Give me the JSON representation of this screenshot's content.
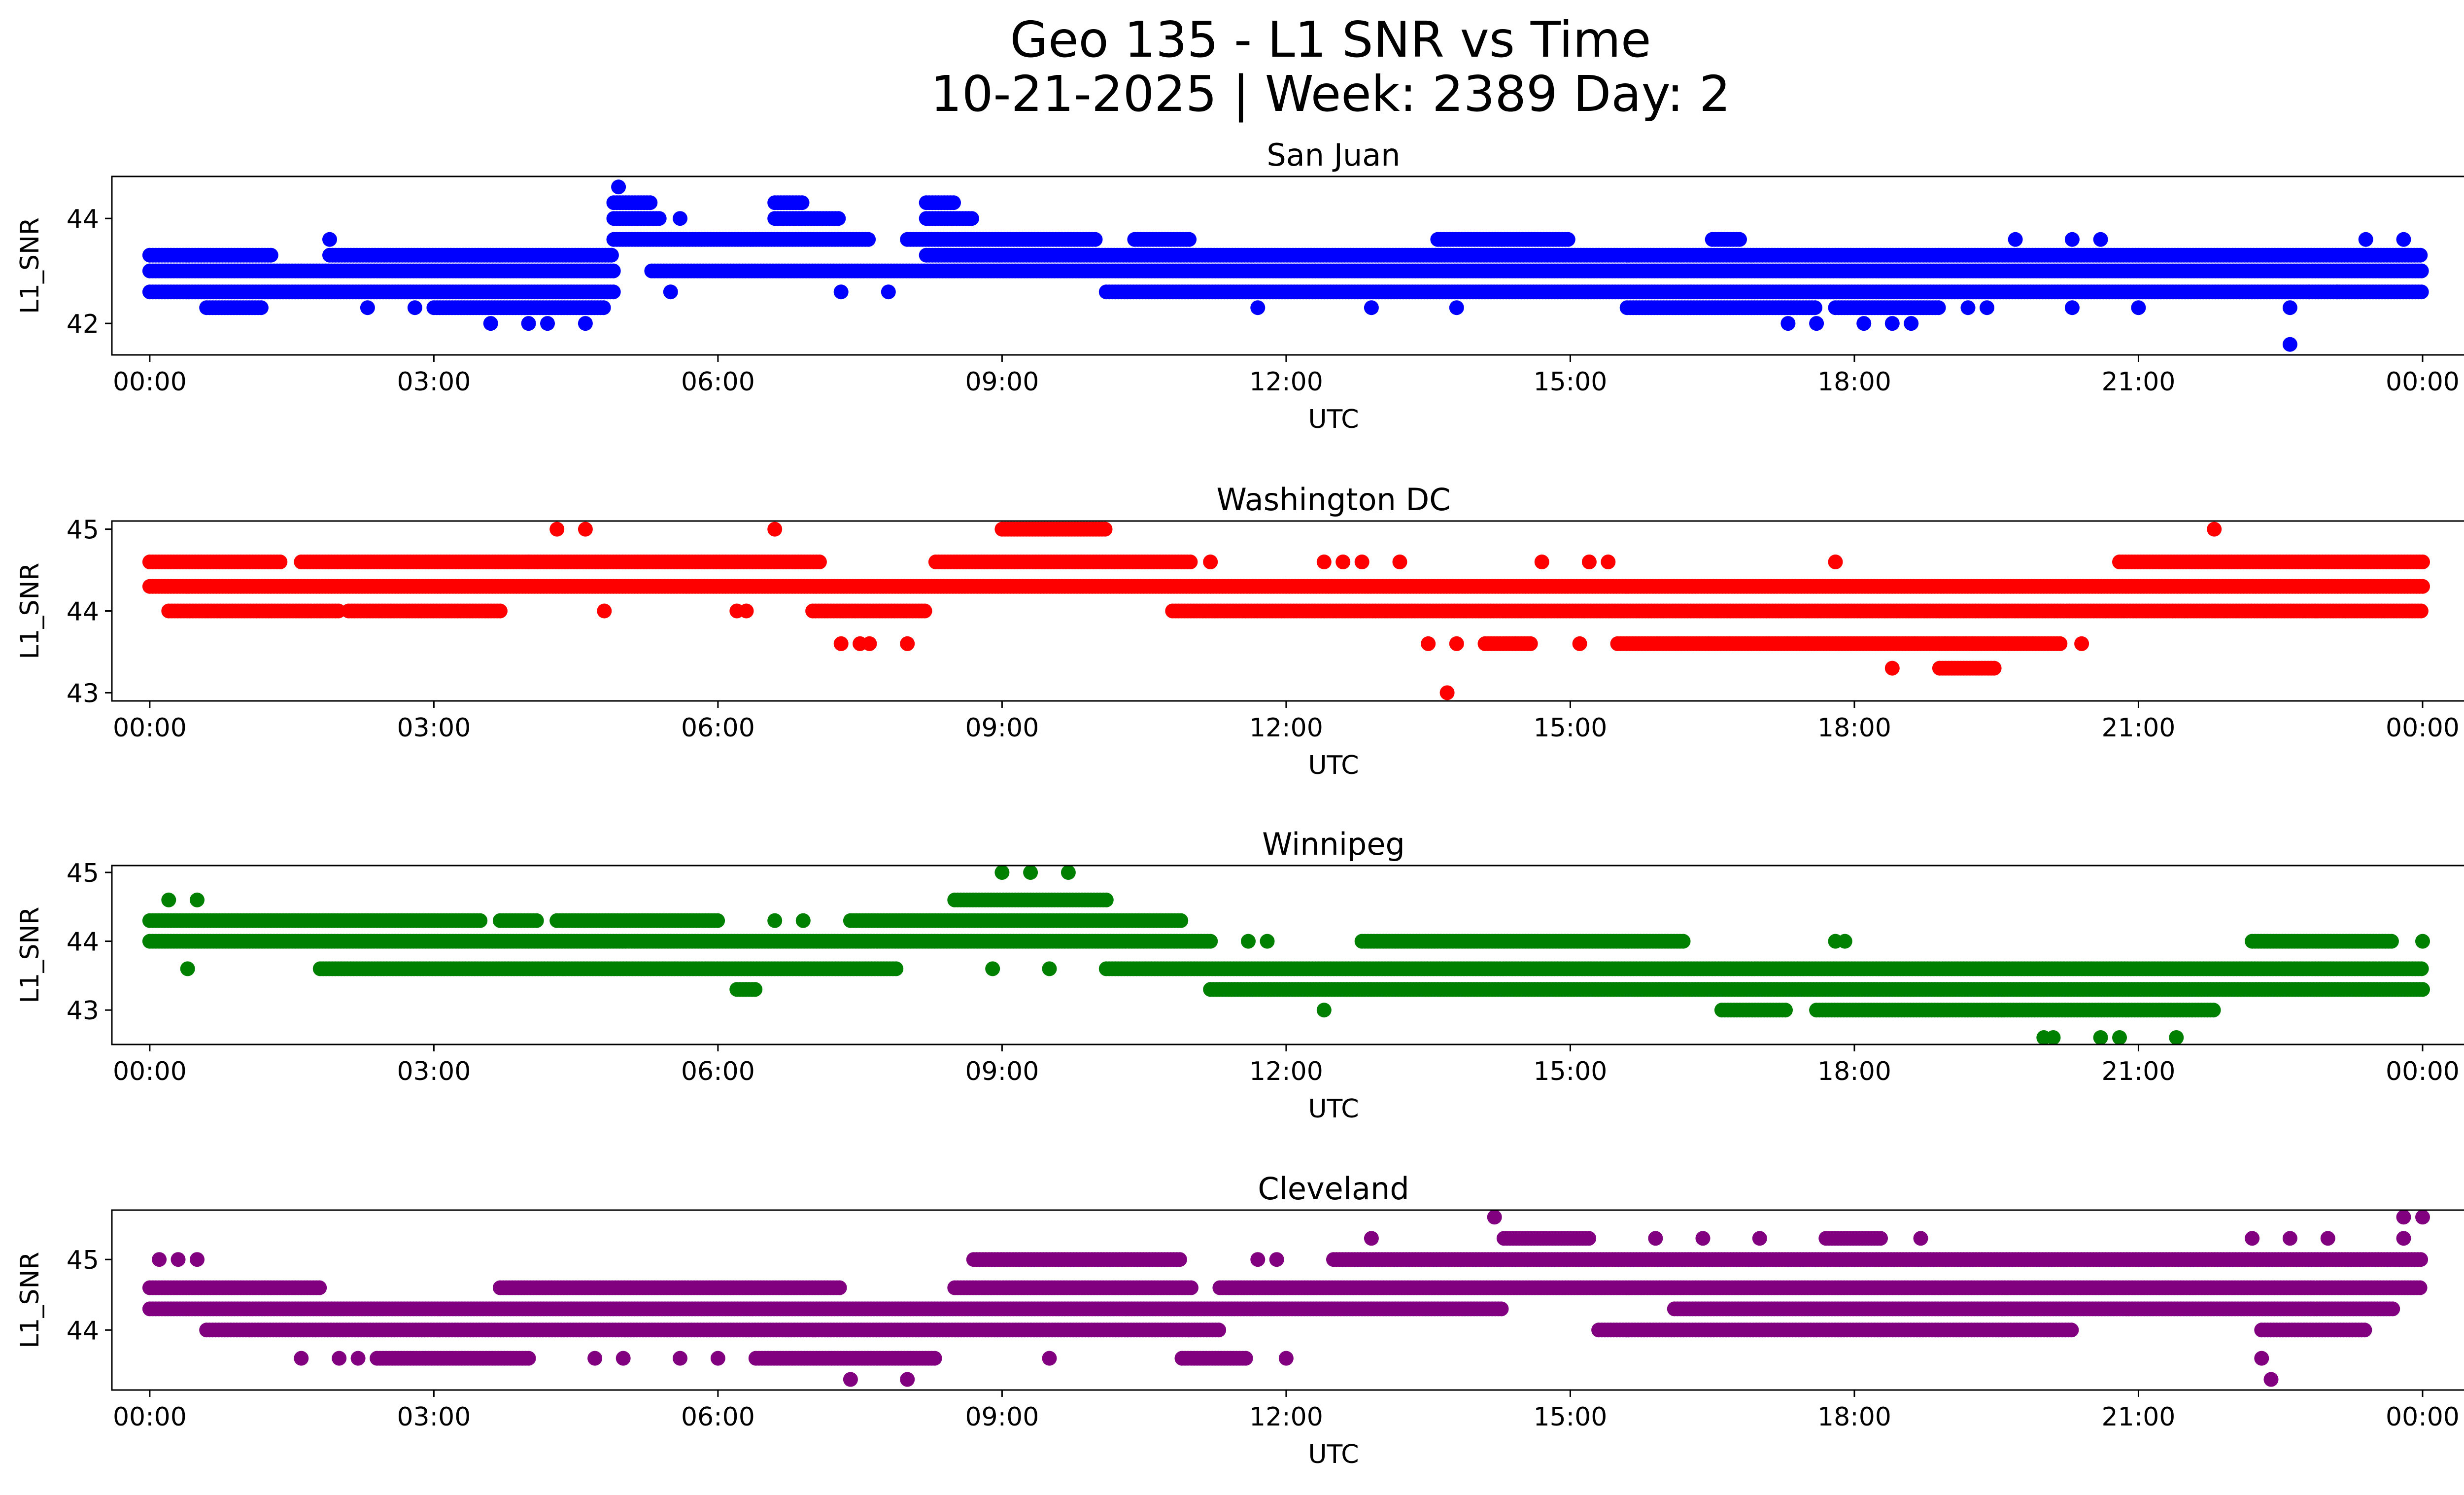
{
  "figure": {
    "title_line1": "Geo 135 - L1 SNR vs Time",
    "title_line2": "10-21-2025 | Week: 2389 Day: 2"
  },
  "chart_data": [
    {
      "type": "scatter",
      "title": "San Juan",
      "xlabel": "UTC",
      "ylabel": "L1_SNR",
      "x_unit": "hours UTC",
      "xlim": [
        -0.4,
        25.4
      ],
      "ylim": [
        41.4,
        44.8
      ],
      "x_ticks": [
        0,
        3,
        6,
        9,
        12,
        15,
        18,
        21,
        24
      ],
      "x_tick_labels": [
        "00:00",
        "03:00",
        "06:00",
        "09:00",
        "12:00",
        "15:00",
        "18:00",
        "21:00",
        "00:00"
      ],
      "y_ticks": [
        42,
        44
      ],
      "color": "#0000ff",
      "bands": [
        {
          "y": 43.3,
          "ranges": [
            [
              0,
              1.3
            ],
            [
              1.9,
              4.9
            ],
            [
              8.2,
              24
            ]
          ]
        },
        {
          "y": 43.0,
          "ranges": [
            [
              0,
              4.9
            ],
            [
              5.3,
              24
            ]
          ]
        },
        {
          "y": 42.6,
          "ranges": [
            [
              0,
              4.9
            ],
            [
              10.1,
              24
            ]
          ]
        },
        {
          "y": 43.6,
          "ranges": [
            [
              4.9,
              7.6
            ],
            [
              8.0,
              10.0
            ],
            [
              10.4,
              11.0
            ]
          ]
        },
        {
          "y": 42.3,
          "ranges": [
            [
              0.6,
              1.2
            ],
            [
              3.0,
              4.8
            ],
            [
              15.6,
              17.6
            ],
            [
              17.8,
              18.9
            ]
          ]
        },
        {
          "y": 44.3,
          "ranges": [
            [
              4.9,
              5.3
            ],
            [
              6.6,
              6.9
            ],
            [
              8.2,
              8.5
            ]
          ]
        },
        {
          "y": 44.0,
          "ranges": [
            [
              4.9,
              5.4
            ],
            [
              6.6,
              7.3
            ],
            [
              8.2,
              8.7
            ]
          ]
        },
        {
          "y": 43.6,
          "ranges": [
            [
              13.6,
              15.0
            ],
            [
              16.5,
              16.8
            ]
          ]
        }
      ],
      "points": [
        [
          3.6,
          42.0
        ],
        [
          4.0,
          42.0
        ],
        [
          4.2,
          42.0
        ],
        [
          4.6,
          42.0
        ],
        [
          17.3,
          42.0
        ],
        [
          17.6,
          42.0
        ],
        [
          18.1,
          42.0
        ],
        [
          18.4,
          42.0
        ],
        [
          18.6,
          42.0
        ],
        [
          22.6,
          41.6
        ],
        [
          4.95,
          44.6
        ],
        [
          5.6,
          44.0
        ],
        [
          5.5,
          42.6
        ],
        [
          7.3,
          42.6
        ],
        [
          7.8,
          42.6
        ],
        [
          11.7,
          42.3
        ],
        [
          12.9,
          42.3
        ],
        [
          13.8,
          42.3
        ],
        [
          1.9,
          43.6
        ],
        [
          2.3,
          42.3
        ],
        [
          2.8,
          42.3
        ],
        [
          19.7,
          43.6
        ],
        [
          20.3,
          43.6
        ],
        [
          20.6,
          43.6
        ],
        [
          22.6,
          42.3
        ],
        [
          22.8,
          42.6
        ],
        [
          23.1,
          42.6
        ],
        [
          20.3,
          42.3
        ],
        [
          21.0,
          42.3
        ],
        [
          19.2,
          42.3
        ],
        [
          19.4,
          42.3
        ],
        [
          23.4,
          43.6
        ],
        [
          23.8,
          43.6
        ]
      ]
    },
    {
      "type": "scatter",
      "title": "Washington DC",
      "xlabel": "UTC",
      "ylabel": "L1_SNR",
      "x_unit": "hours UTC",
      "xlim": [
        -0.4,
        25.4
      ],
      "ylim": [
        42.9,
        45.1
      ],
      "x_ticks": [
        0,
        3,
        6,
        9,
        12,
        15,
        18,
        21,
        24
      ],
      "x_tick_labels": [
        "00:00",
        "03:00",
        "06:00",
        "09:00",
        "12:00",
        "15:00",
        "18:00",
        "21:00",
        "00:00"
      ],
      "y_ticks": [
        43,
        44,
        45
      ],
      "color": "#ff0000",
      "bands": [
        {
          "y": 44.3,
          "ranges": [
            [
              0,
              24
            ]
          ]
        },
        {
          "y": 44.6,
          "ranges": [
            [
              0,
              1.4
            ],
            [
              1.6,
              4.0
            ],
            [
              4.0,
              7.1
            ],
            [
              8.3,
              11.0
            ],
            [
              20.8,
              24
            ]
          ]
        },
        {
          "y": 44.0,
          "ranges": [
            [
              0.2,
              2.0
            ],
            [
              2.1,
              3.7
            ],
            [
              7.0,
              8.2
            ],
            [
              10.8,
              24
            ]
          ]
        },
        {
          "y": 43.6,
          "ranges": [
            [
              14.1,
              14.6
            ],
            [
              15.5,
              20.2
            ]
          ]
        },
        {
          "y": 43.3,
          "ranges": [
            [
              18.9,
              19.5
            ]
          ]
        },
        {
          "y": 45.0,
          "ranges": [
            [
              9.0,
              10.1
            ]
          ]
        }
      ],
      "points": [
        [
          4.3,
          45.0
        ],
        [
          4.6,
          45.0
        ],
        [
          6.6,
          45.0
        ],
        [
          21.8,
          45.0
        ],
        [
          4.8,
          44.0
        ],
        [
          6.2,
          44.0
        ],
        [
          6.3,
          44.0
        ],
        [
          7.3,
          43.6
        ],
        [
          7.5,
          43.6
        ],
        [
          7.6,
          43.6
        ],
        [
          8.0,
          43.6
        ],
        [
          13.7,
          43.0
        ],
        [
          13.5,
          43.6
        ],
        [
          13.8,
          43.6
        ],
        [
          15.1,
          43.6
        ],
        [
          18.4,
          43.3
        ],
        [
          20.4,
          43.6
        ],
        [
          11.2,
          44.6
        ],
        [
          12.4,
          44.6
        ],
        [
          12.6,
          44.6
        ],
        [
          12.8,
          44.6
        ],
        [
          13.2,
          44.6
        ],
        [
          14.7,
          44.6
        ],
        [
          15.2,
          44.6
        ],
        [
          15.4,
          44.6
        ],
        [
          17.8,
          44.6
        ]
      ]
    },
    {
      "type": "scatter",
      "title": "Winnipeg",
      "xlabel": "UTC",
      "ylabel": "L1_SNR",
      "x_unit": "hours UTC",
      "xlim": [
        -0.4,
        25.4
      ],
      "ylim": [
        42.5,
        45.1
      ],
      "x_ticks": [
        0,
        3,
        6,
        9,
        12,
        15,
        18,
        21,
        24
      ],
      "x_tick_labels": [
        "00:00",
        "03:00",
        "06:00",
        "09:00",
        "12:00",
        "15:00",
        "18:00",
        "21:00",
        "00:00"
      ],
      "y_ticks": [
        43,
        44,
        45
      ],
      "color": "#008000",
      "bands": [
        {
          "y": 44.3,
          "ranges": [
            [
              0,
              3.5
            ],
            [
              3.7,
              4.1
            ],
            [
              4.3,
              6.0
            ],
            [
              7.4,
              10.9
            ]
          ]
        },
        {
          "y": 44.0,
          "ranges": [
            [
              0,
              11.2
            ],
            [
              12.8,
              16.2
            ],
            [
              22.2,
              23.7
            ]
          ]
        },
        {
          "y": 43.6,
          "ranges": [
            [
              1.8,
              7.9
            ],
            [
              10.1,
              24
            ]
          ]
        },
        {
          "y": 43.3,
          "ranges": [
            [
              6.2,
              6.4
            ],
            [
              11.2,
              24
            ]
          ]
        },
        {
          "y": 43.0,
          "ranges": [
            [
              16.6,
              17.3
            ],
            [
              17.6,
              21.8
            ]
          ]
        },
        {
          "y": 44.6,
          "ranges": [
            [
              8.5,
              10.1
            ]
          ]
        }
      ],
      "points": [
        [
          0.2,
          44.6
        ],
        [
          0.5,
          44.6
        ],
        [
          0.4,
          43.6
        ],
        [
          9.0,
          45.0
        ],
        [
          9.3,
          45.0
        ],
        [
          9.7,
          45.0
        ],
        [
          8.9,
          43.6
        ],
        [
          9.5,
          43.6
        ],
        [
          12.4,
          43.0
        ],
        [
          11.6,
          44.0
        ],
        [
          11.8,
          44.0
        ],
        [
          17.8,
          44.0
        ],
        [
          17.9,
          44.0
        ],
        [
          20.0,
          42.6
        ],
        [
          20.1,
          42.6
        ],
        [
          20.6,
          42.6
        ],
        [
          20.8,
          42.6
        ],
        [
          21.4,
          42.6
        ],
        [
          6.6,
          44.3
        ],
        [
          6.9,
          44.3
        ],
        [
          24.0,
          44.0
        ]
      ]
    },
    {
      "type": "scatter",
      "title": "Cleveland",
      "xlabel": "UTC",
      "ylabel": "L1_SNR",
      "x_unit": "hours UTC",
      "xlim": [
        -0.4,
        25.4
      ],
      "ylim": [
        43.15,
        45.7
      ],
      "x_ticks": [
        0,
        3,
        6,
        9,
        12,
        15,
        18,
        21,
        24
      ],
      "x_tick_labels": [
        "00:00",
        "03:00",
        "06:00",
        "09:00",
        "12:00",
        "15:00",
        "18:00",
        "21:00",
        "00:00"
      ],
      "y_ticks": [
        44,
        45
      ],
      "color": "#800080",
      "bands": [
        {
          "y": 44.6,
          "ranges": [
            [
              0,
              1.8
            ],
            [
              3.7,
              7.3
            ],
            [
              8.5,
              11.0
            ],
            [
              11.3,
              24
            ]
          ]
        },
        {
          "y": 44.3,
          "ranges": [
            [
              0,
              14.3
            ],
            [
              16.1,
              23.7
            ]
          ]
        },
        {
          "y": 44.0,
          "ranges": [
            [
              0.6,
              11.3
            ],
            [
              15.3,
              20.3
            ],
            [
              22.3,
              23.4
            ]
          ]
        },
        {
          "y": 45.0,
          "ranges": [
            [
              8.7,
              10.9
            ],
            [
              12.5,
              20.3
            ],
            [
              20.3,
              24
            ]
          ]
        },
        {
          "y": 43.6,
          "ranges": [
            [
              2.4,
              4.0
            ],
            [
              6.4,
              8.3
            ],
            [
              10.9,
              11.6
            ]
          ]
        },
        {
          "y": 45.3,
          "ranges": [
            [
              14.3,
              15.2
            ],
            [
              17.7,
              18.3
            ]
          ]
        }
      ],
      "points": [
        [
          0.1,
          45.0
        ],
        [
          0.3,
          45.0
        ],
        [
          0.5,
          45.0
        ],
        [
          1.6,
          43.6
        ],
        [
          2.0,
          43.6
        ],
        [
          2.2,
          43.6
        ],
        [
          7.4,
          43.3
        ],
        [
          8.0,
          43.3
        ],
        [
          12.0,
          43.6
        ],
        [
          14.2,
          45.6
        ],
        [
          12.9,
          45.3
        ],
        [
          15.9,
          45.3
        ],
        [
          16.4,
          45.3
        ],
        [
          17.0,
          45.3
        ],
        [
          18.7,
          45.3
        ],
        [
          22.2,
          45.3
        ],
        [
          22.6,
          45.3
        ],
        [
          23.0,
          45.3
        ],
        [
          22.3,
          43.6
        ],
        [
          22.4,
          43.3
        ],
        [
          23.8,
          45.6
        ],
        [
          24.0,
          45.6
        ],
        [
          23.8,
          45.3
        ],
        [
          11.7,
          45.0
        ],
        [
          11.9,
          45.0
        ],
        [
          4.7,
          43.6
        ],
        [
          5.0,
          43.6
        ],
        [
          5.6,
          43.6
        ],
        [
          6.0,
          43.6
        ],
        [
          9.5,
          43.6
        ]
      ]
    }
  ]
}
